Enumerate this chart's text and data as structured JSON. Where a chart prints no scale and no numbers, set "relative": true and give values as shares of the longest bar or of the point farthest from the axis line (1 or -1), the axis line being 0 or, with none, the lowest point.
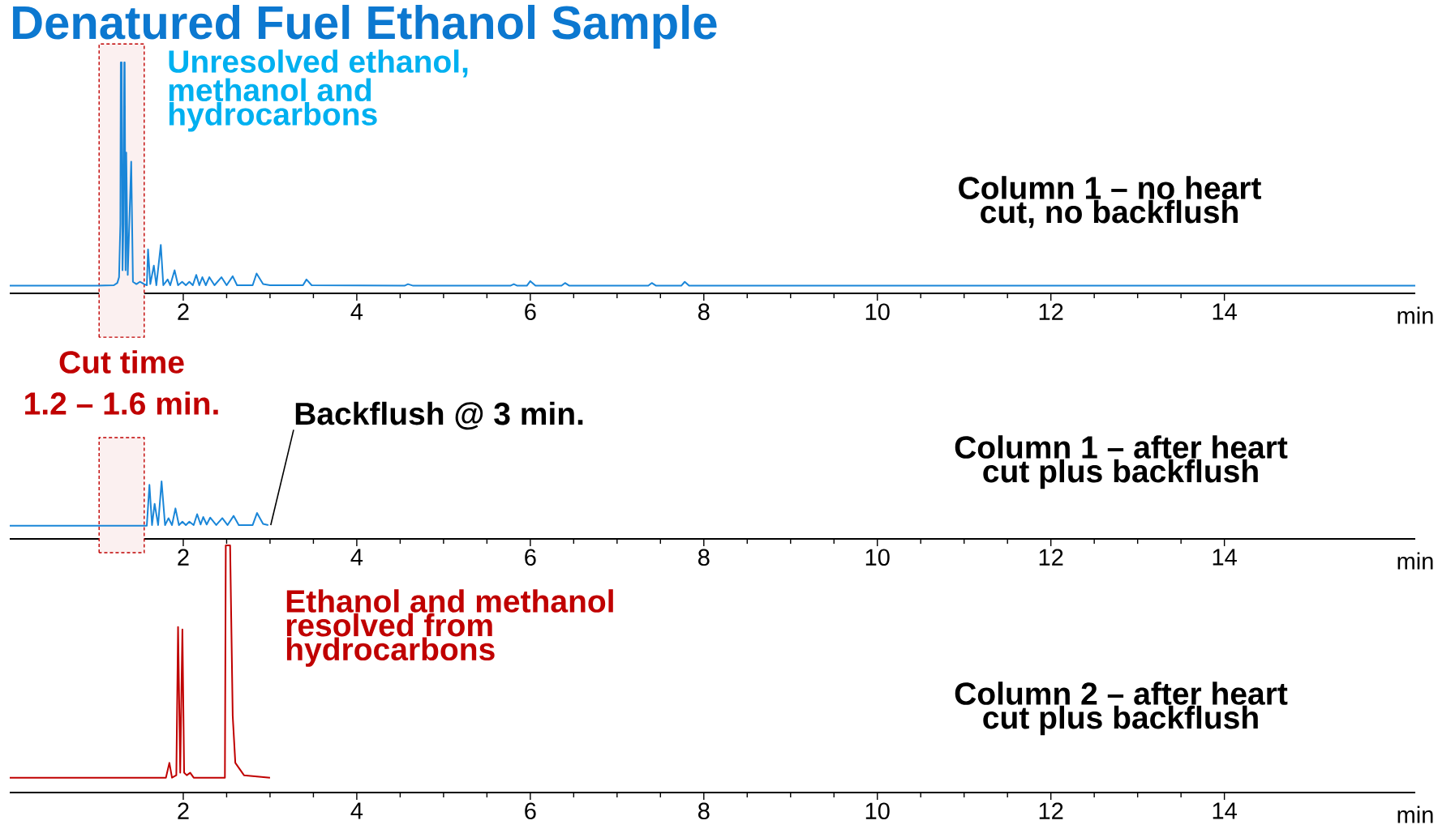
{
  "chart_data": [
    {
      "type": "line",
      "title": "Denatured Fuel Ethanol Sample",
      "relative": true,
      "xlim": [
        0,
        16.2
      ],
      "xticks": [
        2,
        4,
        6,
        8,
        10,
        12,
        14
      ],
      "xlabel": "min",
      "x": [
        0,
        1.0,
        1.2,
        1.24,
        1.26,
        1.275,
        1.28,
        1.29,
        1.3,
        1.31,
        1.32,
        1.325,
        1.335,
        1.343,
        1.36,
        1.4,
        1.42,
        1.46,
        1.5,
        1.55,
        1.58,
        1.594,
        1.62,
        1.661,
        1.69,
        1.741,
        1.77,
        1.82,
        1.85,
        1.9,
        1.94,
        1.987,
        2.03,
        2.07,
        2.11,
        2.15,
        2.185,
        2.22,
        2.26,
        2.3,
        2.36,
        2.44,
        2.5,
        2.57,
        2.62,
        2.8,
        2.845,
        2.92,
        3.0,
        3.38,
        3.42,
        3.48,
        4.55,
        4.59,
        4.65,
        5.77,
        5.81,
        5.85,
        5.96,
        6.0,
        6.06,
        6.36,
        6.4,
        6.45,
        7.36,
        7.4,
        7.45,
        7.74,
        7.78,
        7.83,
        16.2
      ],
      "series": [
        {
          "color": "#1a86d8",
          "values": [
            0.033,
            0.033,
            0.035,
            0.045,
            0.07,
            0.3,
            1,
            1,
            0.1,
            0.3,
            1,
            1,
            0.1,
            0.61,
            0.08,
            0.57,
            0.05,
            0.04,
            0.05,
            0.04,
            0.035,
            0.19,
            0.04,
            0.12,
            0.035,
            0.21,
            0.035,
            0.06,
            0.035,
            0.1,
            0.035,
            0.05,
            0.035,
            0.05,
            0.035,
            0.08,
            0.035,
            0.07,
            0.035,
            0.07,
            0.035,
            0.07,
            0.035,
            0.074,
            0.035,
            0.035,
            0.086,
            0.04,
            0.035,
            0.035,
            0.06,
            0.035,
            0.033,
            0.04,
            0.033,
            0.033,
            0.04,
            0.033,
            0.033,
            0.053,
            0.033,
            0.033,
            0.045,
            0.033,
            0.033,
            0.045,
            0.033,
            0.033,
            0.05,
            0.033,
            0.033
          ]
        }
      ],
      "bands": [
        {
          "axis": "x",
          "from": 1.03,
          "to": 1.55,
          "color": "#c00000"
        }
      ],
      "annotations": [
        "Unresolved ethanol, methanol and hydrocarbons",
        "Column 1 – no heart cut, no backflush"
      ]
    },
    {
      "type": "line",
      "relative": true,
      "xlim": [
        0,
        16.2
      ],
      "xticks": [
        2,
        4,
        6,
        8,
        10,
        12,
        14
      ],
      "xlabel": "min",
      "x": [
        0,
        1.58,
        1.61,
        1.64,
        1.67,
        1.71,
        1.75,
        1.79,
        1.83,
        1.87,
        1.91,
        1.95,
        1.99,
        2.03,
        2.07,
        2.12,
        2.16,
        2.2,
        2.23,
        2.27,
        2.31,
        2.38,
        2.45,
        2.51,
        2.58,
        2.64,
        2.8,
        2.85,
        2.92,
        2.98
      ],
      "series": [
        {
          "color": "#1a86d8",
          "values": [
            0.23,
            0.23,
            0.94,
            0.24,
            0.61,
            0.24,
            1,
            0.24,
            0.36,
            0.24,
            0.53,
            0.24,
            0.3,
            0.24,
            0.3,
            0.24,
            0.43,
            0.25,
            0.38,
            0.25,
            0.37,
            0.24,
            0.36,
            0.24,
            0.4,
            0.24,
            0.24,
            0.45,
            0.26,
            0.24
          ]
        }
      ],
      "bands": [
        {
          "axis": "x",
          "from": 1.03,
          "to": 1.55,
          "color": "#c00000"
        }
      ],
      "annotations": [
        "Cut time",
        "1.2 – 1.6 min.",
        {
          "text": "Backflush @ 3 min.",
          "x": 2.98,
          "y": 0.24
        },
        "Column 1 – after heart cut plus backflush"
      ]
    },
    {
      "type": "line",
      "relative": true,
      "xlim": [
        0,
        16.2
      ],
      "xticks": [
        2,
        4,
        6,
        8,
        10,
        12,
        14
      ],
      "xlabel": "min",
      "x": [
        0,
        1.8,
        1.84,
        1.87,
        1.92,
        1.94,
        1.965,
        1.99,
        2.01,
        2.04,
        2.08,
        2.12,
        2.48,
        2.49,
        2.54,
        2.57,
        2.6,
        2.7,
        3.0
      ],
      "series": [
        {
          "color": "#c00000",
          "values": [
            0.06,
            0.06,
            0.12,
            0.06,
            0.07,
            0.67,
            0.08,
            0.66,
            0.08,
            0.07,
            0.08,
            0.06,
            0.06,
            1,
            1,
            0.31,
            0.12,
            0.07,
            0.06
          ]
        }
      ],
      "annotations": [
        "Ethanol and methanol resolved from hydrocarbons",
        "Column 2 – after heart cut plus backflush"
      ]
    }
  ]
}
